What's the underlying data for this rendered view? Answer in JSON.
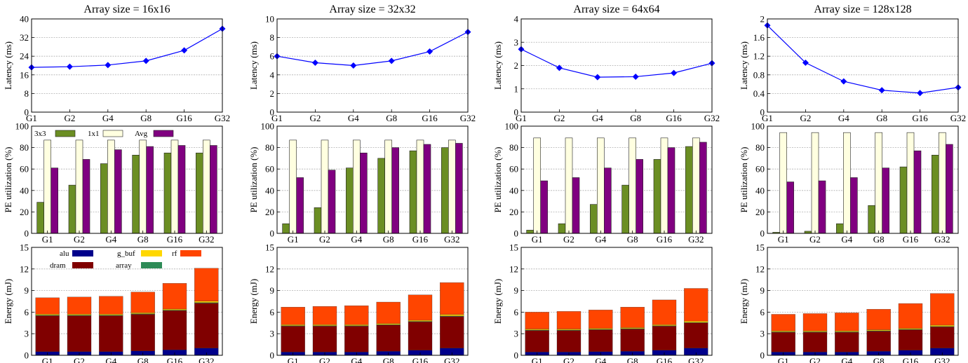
{
  "colors": {
    "conv3x3": "#6b8e23",
    "conv1x1": "#ffffe0",
    "avg": "#800080",
    "alu": "#00008b",
    "dram": "#800000",
    "g_buf": "#ffd700",
    "array": "#2e8b57",
    "rf": "#ff4500",
    "latency_line": "#0000ff"
  },
  "legend_util": {
    "labels": [
      "3x3",
      "1x1",
      "Avg"
    ]
  },
  "legend_energy": {
    "labels": [
      "alu",
      "g_buf",
      "rf",
      "dram",
      "array"
    ]
  },
  "chart_data": [
    {
      "type": "line",
      "row": "latency",
      "title": "Array size = 16x16",
      "ylabel": "Latency (ms)",
      "categories": [
        "G1",
        "G2",
        "G4",
        "G8",
        "G16",
        "G32"
      ],
      "values": [
        19.2,
        19.5,
        20.2,
        22.0,
        26.5,
        35.8
      ],
      "ylim": [
        0,
        40
      ],
      "yticks": [
        "0",
        "8",
        "16",
        "24",
        "32",
        "40"
      ],
      "grid": true
    },
    {
      "type": "line",
      "row": "latency",
      "title": "Array size = 32x32",
      "ylabel": "Latency (ms)",
      "categories": [
        "G1",
        "G2",
        "G4",
        "G8",
        "G16",
        "G32"
      ],
      "values": [
        6.0,
        5.3,
        5.0,
        5.5,
        6.5,
        8.6
      ],
      "ylim": [
        0,
        10
      ],
      "yticks": [
        "0",
        "2",
        "4",
        "6",
        "8",
        "10"
      ],
      "grid": true
    },
    {
      "type": "line",
      "row": "latency",
      "title": "Array size = 64x64",
      "ylabel": "Latency (ms)",
      "categories": [
        "G1",
        "G2",
        "G4",
        "G8",
        "G16",
        "G32"
      ],
      "values": [
        2.7,
        1.9,
        1.5,
        1.52,
        1.68,
        2.1
      ],
      "ylim": [
        0,
        4
      ],
      "yticks": [
        "0",
        "1",
        "2",
        "3",
        "4"
      ],
      "grid": true
    },
    {
      "type": "line",
      "row": "latency",
      "title": "Array size = 128x128",
      "ylabel": "Latency (ms)",
      "categories": [
        "G1",
        "G2",
        "G4",
        "G8",
        "G16",
        "G32"
      ],
      "values": [
        1.86,
        1.06,
        0.66,
        0.47,
        0.41,
        0.53
      ],
      "ylim": [
        0,
        2
      ],
      "yticks": [
        "0",
        "0.4",
        "0.8",
        "1.2",
        "1.6",
        "2"
      ],
      "grid": true
    },
    {
      "type": "bar",
      "row": "util",
      "ylabel": "PE utilization (%)",
      "categories": [
        "G1",
        "G2",
        "G4",
        "G8",
        "G16",
        "G32"
      ],
      "series": [
        {
          "name": "3x3",
          "values": [
            29,
            45,
            65,
            73,
            75,
            75
          ]
        },
        {
          "name": "1x1",
          "values": [
            87,
            87,
            87,
            87,
            87,
            87
          ]
        },
        {
          "name": "Avg",
          "values": [
            61,
            69,
            78,
            81,
            82,
            82
          ]
        }
      ],
      "ylim": [
        0,
        100
      ],
      "yticks": [
        "0",
        "20",
        "40",
        "60",
        "80",
        "100"
      ],
      "grid": true,
      "legend": "top-left"
    },
    {
      "type": "bar",
      "row": "util",
      "ylabel": "PE utilization (%)",
      "categories": [
        "G1",
        "G2",
        "G4",
        "G8",
        "G16",
        "G32"
      ],
      "series": [
        {
          "name": "3x3",
          "values": [
            9,
            24,
            61,
            70,
            77,
            80
          ]
        },
        {
          "name": "1x1",
          "values": [
            87,
            87,
            87,
            87,
            87,
            87
          ]
        },
        {
          "name": "Avg",
          "values": [
            52,
            59,
            75,
            80,
            83,
            84
          ]
        }
      ],
      "ylim": [
        0,
        100
      ],
      "yticks": [
        "0",
        "20",
        "40",
        "60",
        "80",
        "100"
      ],
      "grid": true
    },
    {
      "type": "bar",
      "row": "util",
      "ylabel": "PE utilization (%)",
      "categories": [
        "G1",
        "G2",
        "G4",
        "G8",
        "G16",
        "G32"
      ],
      "series": [
        {
          "name": "3x3",
          "values": [
            3,
            9,
            27,
            45,
            69,
            81
          ]
        },
        {
          "name": "1x1",
          "values": [
            89,
            89,
            89,
            89,
            89,
            89
          ]
        },
        {
          "name": "Avg",
          "values": [
            49,
            52,
            61,
            69,
            80,
            85
          ]
        }
      ],
      "ylim": [
        0,
        100
      ],
      "yticks": [
        "0",
        "20",
        "40",
        "60",
        "80",
        "100"
      ],
      "grid": true
    },
    {
      "type": "bar",
      "row": "util",
      "ylabel": "PE utilization (%)",
      "categories": [
        "G1",
        "G2",
        "G4",
        "G8",
        "G16",
        "G32"
      ],
      "series": [
        {
          "name": "3x3",
          "values": [
            1,
            2,
            9,
            26,
            62,
            73
          ]
        },
        {
          "name": "1x1",
          "values": [
            94,
            94,
            94,
            94,
            94,
            94
          ]
        },
        {
          "name": "Avg",
          "values": [
            48,
            49,
            52,
            61,
            77,
            83
          ]
        }
      ],
      "ylim": [
        0,
        100
      ],
      "yticks": [
        "0",
        "20",
        "40",
        "60",
        "80",
        "100"
      ],
      "grid": true
    },
    {
      "type": "bar",
      "stacked": true,
      "row": "energy",
      "ylabel": "Energy (mJ)",
      "categories": [
        "G1",
        "G2",
        "G4",
        "G8",
        "G16",
        "G32"
      ],
      "series": [
        {
          "name": "alu",
          "values": [
            0.5,
            0.5,
            0.5,
            0.6,
            0.75,
            1.0
          ]
        },
        {
          "name": "dram",
          "values": [
            5.0,
            5.0,
            5.0,
            5.1,
            5.45,
            6.25
          ]
        },
        {
          "name": "array",
          "values": [
            0.08,
            0.08,
            0.08,
            0.08,
            0.08,
            0.08
          ]
        },
        {
          "name": "g_buf",
          "values": [
            0.15,
            0.15,
            0.15,
            0.15,
            0.15,
            0.2
          ]
        },
        {
          "name": "rf",
          "values": [
            2.27,
            2.37,
            2.47,
            2.87,
            3.57,
            4.57
          ]
        }
      ],
      "ylim": [
        0,
        15
      ],
      "yticks": [
        "0",
        "3",
        "6",
        "9",
        "12",
        "15"
      ],
      "grid": true,
      "legend": "top-left"
    },
    {
      "type": "bar",
      "stacked": true,
      "row": "energy",
      "ylabel": "Energy (mJ)",
      "categories": [
        "G1",
        "G2",
        "G4",
        "G8",
        "G16",
        "G32"
      ],
      "series": [
        {
          "name": "alu",
          "values": [
            0.45,
            0.45,
            0.45,
            0.55,
            0.7,
            1.0
          ]
        },
        {
          "name": "dram",
          "values": [
            3.6,
            3.6,
            3.6,
            3.65,
            3.95,
            4.4
          ]
        },
        {
          "name": "array",
          "values": [
            0.07,
            0.07,
            0.07,
            0.07,
            0.07,
            0.07
          ]
        },
        {
          "name": "g_buf",
          "values": [
            0.15,
            0.15,
            0.15,
            0.15,
            0.15,
            0.2
          ]
        },
        {
          "name": "rf",
          "values": [
            2.43,
            2.53,
            2.63,
            2.98,
            3.53,
            4.43
          ]
        }
      ],
      "ylim": [
        0,
        15
      ],
      "yticks": [
        "0",
        "3",
        "6",
        "9",
        "12",
        "15"
      ],
      "grid": true
    },
    {
      "type": "bar",
      "stacked": true,
      "row": "energy",
      "ylabel": "Energy (mJ)",
      "categories": [
        "G1",
        "G2",
        "G4",
        "G8",
        "G16",
        "G32"
      ],
      "series": [
        {
          "name": "alu",
          "values": [
            0.45,
            0.45,
            0.5,
            0.55,
            0.7,
            1.0
          ]
        },
        {
          "name": "dram",
          "values": [
            3.0,
            3.0,
            3.05,
            3.1,
            3.35,
            3.5
          ]
        },
        {
          "name": "array",
          "values": [
            0.06,
            0.06,
            0.06,
            0.06,
            0.06,
            0.06
          ]
        },
        {
          "name": "g_buf",
          "values": [
            0.14,
            0.14,
            0.14,
            0.14,
            0.14,
            0.18
          ]
        },
        {
          "name": "rf",
          "values": [
            2.35,
            2.45,
            2.55,
            2.85,
            3.45,
            4.56
          ]
        }
      ],
      "ylim": [
        0,
        15
      ],
      "yticks": [
        "0",
        "3",
        "6",
        "9",
        "12",
        "15"
      ],
      "grid": true
    },
    {
      "type": "bar",
      "stacked": true,
      "row": "energy",
      "ylabel": "Energy (mJ)",
      "categories": [
        "G1",
        "G2",
        "G4",
        "G8",
        "G16",
        "G32"
      ],
      "series": [
        {
          "name": "alu",
          "values": [
            0.45,
            0.45,
            0.45,
            0.55,
            0.7,
            1.0
          ]
        },
        {
          "name": "dram",
          "values": [
            2.75,
            2.75,
            2.75,
            2.8,
            2.85,
            2.95
          ]
        },
        {
          "name": "array",
          "values": [
            0.06,
            0.06,
            0.06,
            0.06,
            0.06,
            0.06
          ]
        },
        {
          "name": "g_buf",
          "values": [
            0.14,
            0.14,
            0.14,
            0.14,
            0.14,
            0.18
          ]
        },
        {
          "name": "rf",
          "values": [
            2.3,
            2.4,
            2.5,
            2.85,
            3.45,
            4.41
          ]
        }
      ],
      "ylim": [
        0,
        15
      ],
      "yticks": [
        "0",
        "3",
        "6",
        "9",
        "12",
        "15"
      ],
      "grid": true
    }
  ]
}
